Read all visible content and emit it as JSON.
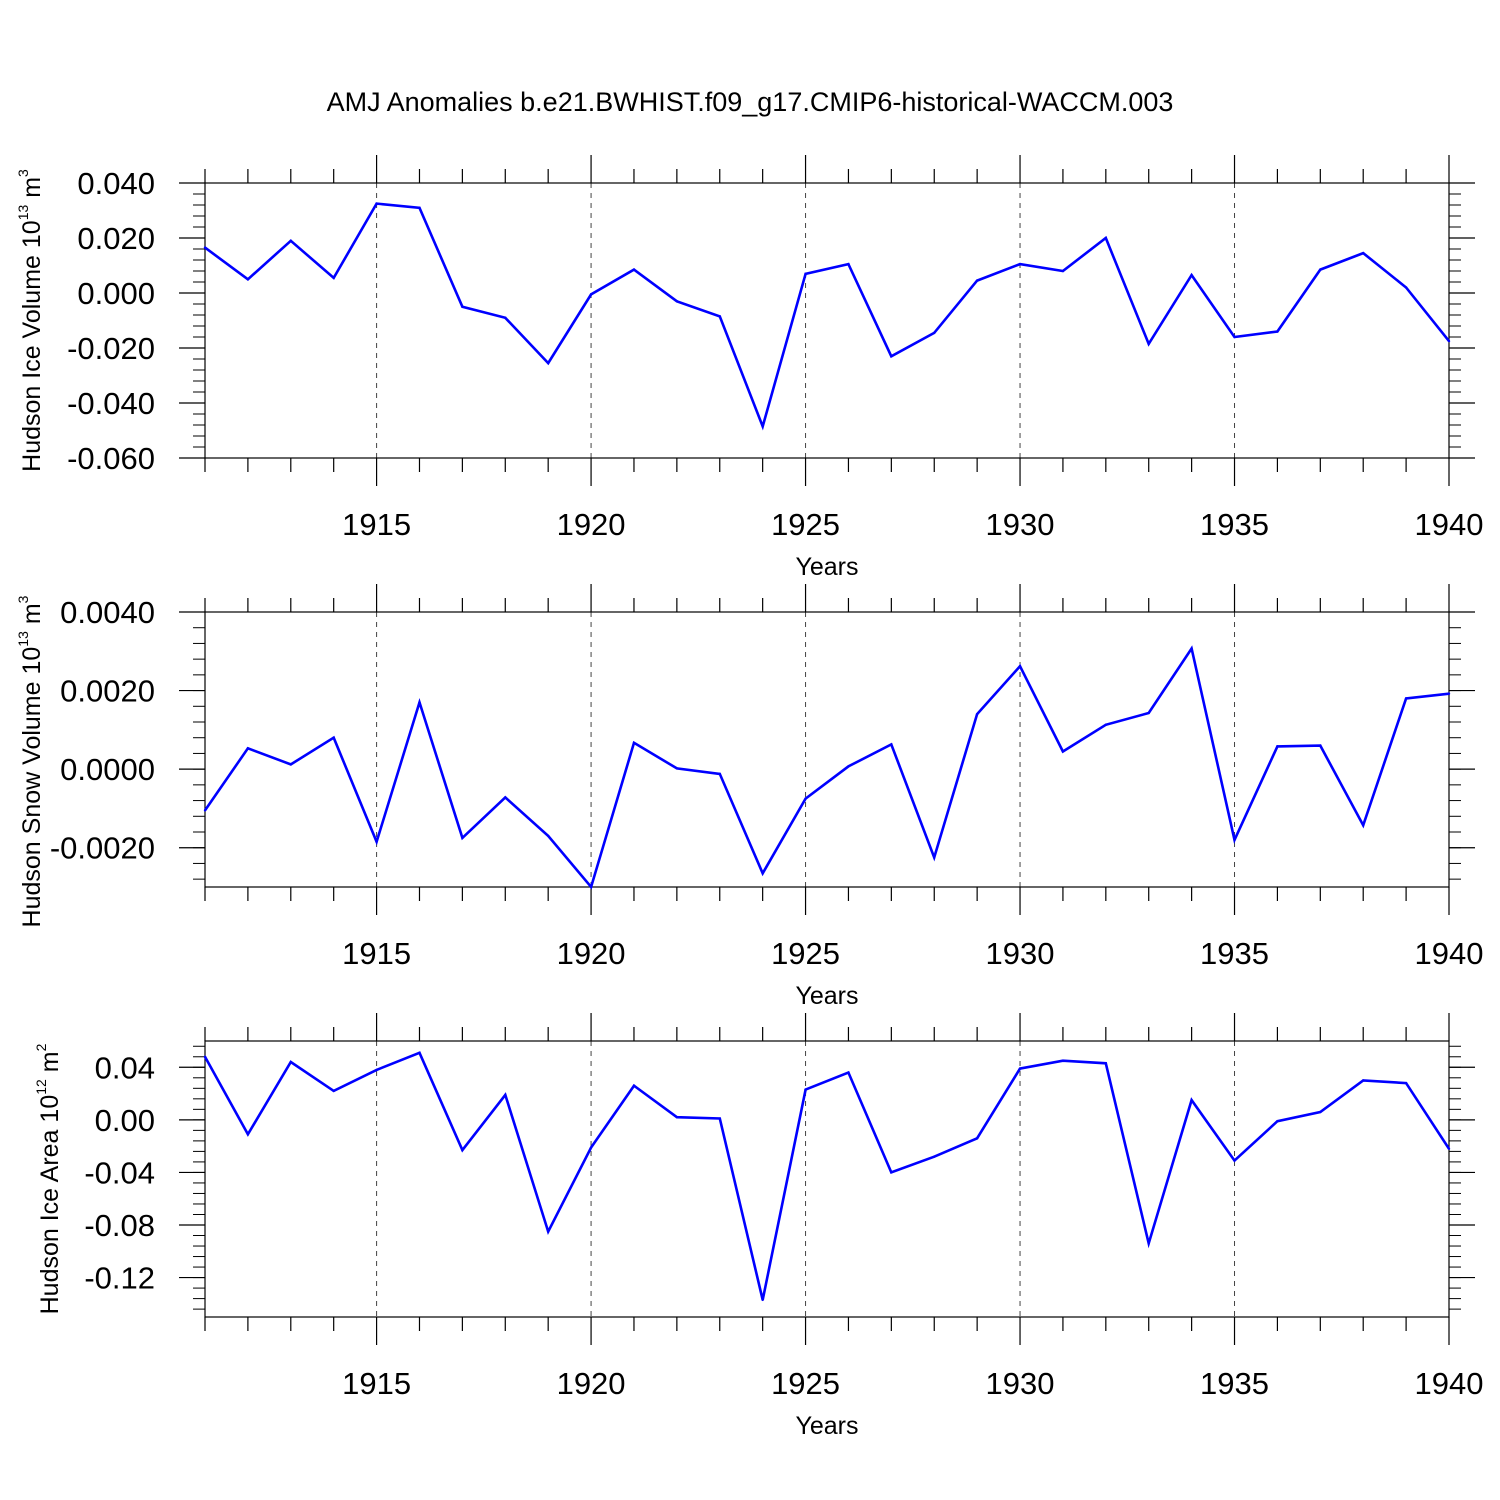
{
  "chart_data": {
    "title": "AMJ Anomalies b.e21.BWHIST.f09_g17.CMIP6-historical-WACCM.003",
    "x": [
      1911,
      1912,
      1913,
      1914,
      1915,
      1916,
      1917,
      1918,
      1919,
      1920,
      1921,
      1922,
      1923,
      1924,
      1925,
      1926,
      1927,
      1928,
      1929,
      1930,
      1931,
      1932,
      1933,
      1934,
      1935,
      1936,
      1937,
      1938,
      1939,
      1940
    ],
    "x_tick_labels": [
      "1915",
      "1920",
      "1925",
      "1930",
      "1935",
      "1940"
    ],
    "x_ticks": [
      1915,
      1920,
      1925,
      1930,
      1935,
      1940
    ],
    "xlim": [
      1911,
      1940
    ],
    "line_color": "#0000ff",
    "panels": [
      {
        "type": "line",
        "xlabel": "Years",
        "ylabel_main": "Hudson Ice Volume 10",
        "ylabel_exp": "13",
        "ylabel_unit": " m",
        "ylabel_unit_exp": "3",
        "ylim": [
          -0.06,
          0.04
        ],
        "y_ticks": [
          -0.06,
          -0.04,
          -0.02,
          0.0,
          0.02,
          0.04
        ],
        "y_tick_labels": [
          "-0.060",
          "-0.040",
          "-0.020",
          "0.000",
          "0.020",
          "0.040"
        ],
        "values": [
          0.0165,
          0.005,
          0.019,
          0.0055,
          0.0325,
          0.031,
          -0.005,
          -0.009,
          -0.0255,
          -0.0005,
          0.0085,
          -0.003,
          -0.0085,
          -0.0485,
          0.007,
          0.0105,
          -0.023,
          -0.0145,
          0.0045,
          0.0105,
          0.008,
          0.02,
          -0.0185,
          0.0065,
          -0.016,
          -0.014,
          0.0085,
          0.0145,
          0.002,
          -0.0175
        ]
      },
      {
        "type": "line",
        "xlabel": "Years",
        "ylabel_main": "Hudson Snow Volume 10",
        "ylabel_exp": "13",
        "ylabel_unit": " m",
        "ylabel_unit_exp": "3",
        "ylim": [
          -0.003,
          0.004
        ],
        "y_ticks": [
          -0.002,
          0.0,
          0.002,
          0.004
        ],
        "y_tick_labels": [
          "-0.0020",
          "0.0000",
          "0.0020",
          "0.0040"
        ],
        "values": [
          -0.00105,
          0.00053,
          0.00012,
          0.0008,
          -0.00185,
          0.0017,
          -0.00175,
          -0.00072,
          -0.0017,
          -0.003,
          0.00067,
          2e-05,
          -0.00012,
          -0.00265,
          -0.00075,
          7e-05,
          0.00063,
          -0.00225,
          0.0014,
          0.00262,
          0.00045,
          0.00113,
          0.00143,
          0.00307,
          -0.0018,
          0.00058,
          0.0006,
          -0.00143,
          0.0018,
          0.00192
        ]
      },
      {
        "type": "line",
        "xlabel": "Years",
        "ylabel_main": "Hudson Ice Area 10",
        "ylabel_exp": "12",
        "ylabel_unit": " m",
        "ylabel_unit_exp": "2",
        "ylim": [
          -0.15,
          0.06
        ],
        "y_ticks": [
          -0.12,
          -0.08,
          -0.04,
          0.0,
          0.04
        ],
        "y_tick_labels": [
          "-0.12",
          "-0.08",
          "-0.04",
          "0.00",
          "0.04"
        ],
        "values": [
          0.048,
          -0.011,
          0.044,
          0.022,
          0.038,
          0.051,
          -0.023,
          0.019,
          -0.085,
          -0.021,
          0.026,
          0.002,
          0.001,
          -0.137,
          0.023,
          0.036,
          -0.04,
          -0.028,
          -0.014,
          0.039,
          0.045,
          0.043,
          -0.094,
          0.015,
          -0.031,
          -0.001,
          0.006,
          0.03,
          0.028,
          -0.022
        ]
      }
    ]
  }
}
